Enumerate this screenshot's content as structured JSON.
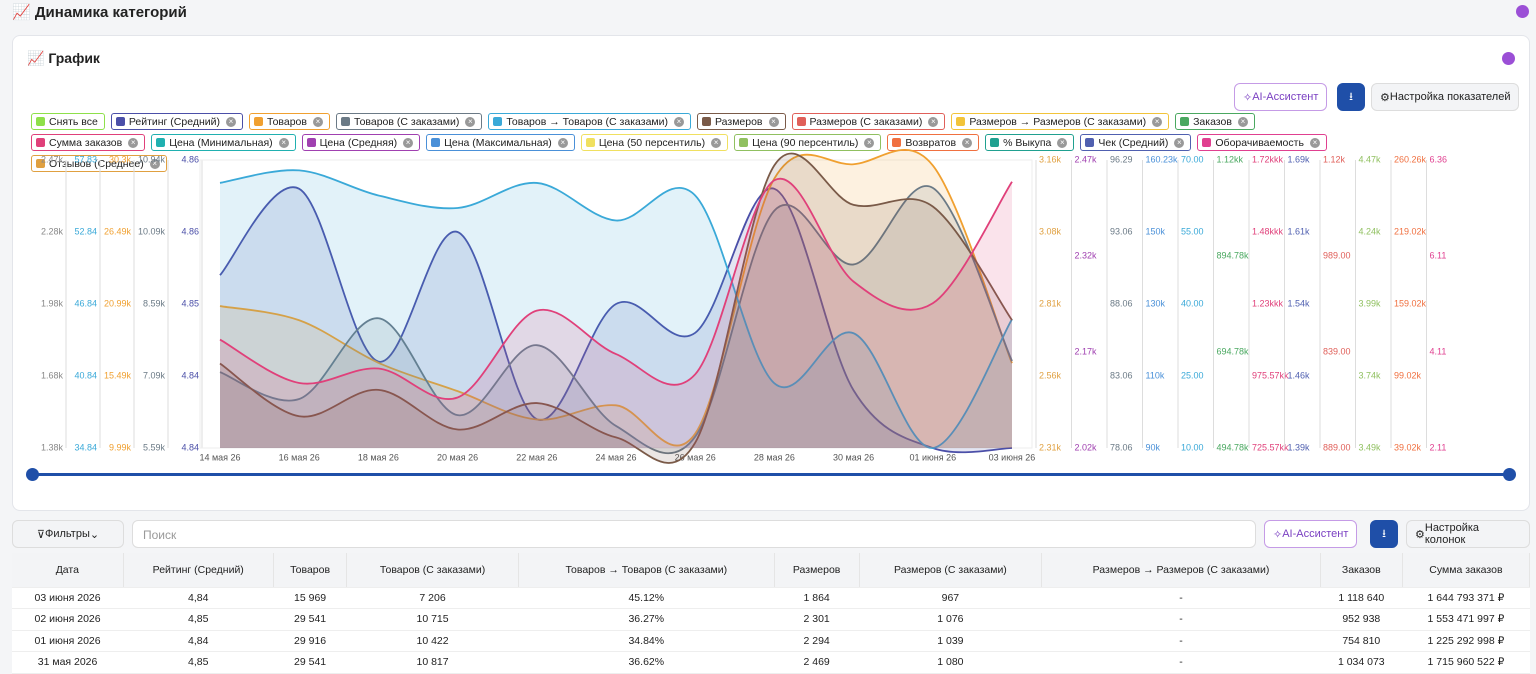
{
  "header": {
    "title": "Динамика категорий"
  },
  "card": {
    "title": "График",
    "buttons": [
      "AI-Ассистент",
      "Настройка показателей"
    ]
  },
  "legend": [
    {
      "label": "Снять все",
      "color": "#8ee04a"
    },
    {
      "label": "Рейтинг (Средний)",
      "color": "#4b4fa8"
    },
    {
      "label": "Товаров",
      "color": "#f0a030"
    },
    {
      "label": "Товаров (С заказами)",
      "color": "#6b7a86"
    },
    {
      "label": "Товаров → Товаров (С заказами)",
      "color": "#3aa9d8"
    },
    {
      "label": "Размеров",
      "color": "#7a5a48"
    },
    {
      "label": "Размеров (С заказами)",
      "color": "#e0605a"
    },
    {
      "label": "Размеров → Размеров (С заказами)",
      "color": "#f2c43a"
    },
    {
      "label": "Заказов",
      "color": "#4aa860"
    },
    {
      "label": "Сумма заказов",
      "color": "#e0407a"
    },
    {
      "label": "Цена (Минимальная)",
      "color": "#20b0b0"
    },
    {
      "label": "Цена (Средняя)",
      "color": "#a040b0"
    },
    {
      "label": "Цена (Максимальная)",
      "color": "#4a90d8"
    },
    {
      "label": "Цена (50 персентиль)",
      "color": "#f0e060"
    },
    {
      "label": "Цена (90 персентиль)",
      "color": "#90c060"
    },
    {
      "label": "Возвратов",
      "color": "#f07040"
    },
    {
      "label": "% Выкупа",
      "color": "#20a090"
    },
    {
      "label": "Чек (Средний)",
      "color": "#5060b0"
    },
    {
      "label": "Оборачиваемость",
      "color": "#e04090"
    },
    {
      "label": "Отзывов (Среднее)",
      "color": "#e0a040"
    }
  ],
  "axes_left": [
    {
      "color": "#888",
      "ticks": [
        "2.47k",
        "2.28k",
        "1.98k",
        "1.68k",
        "1.38k"
      ]
    },
    {
      "color": "#3aa9d8",
      "ticks": [
        "57.83",
        "52.84",
        "46.84",
        "40.84",
        "34.84"
      ]
    },
    {
      "color": "#f0a030",
      "ticks": [
        "30.3k",
        "26.49k",
        "20.99k",
        "15.49k",
        "9.99k"
      ]
    },
    {
      "color": "#6b7a86",
      "ticks": [
        "10.94k",
        "10.09k",
        "8.59k",
        "7.09k",
        "5.59k"
      ]
    },
    {
      "color": "#4b4fa8",
      "ticks": [
        "4.86",
        "4.86",
        "4.85",
        "4.84",
        "4.84"
      ]
    }
  ],
  "axes_right": [
    {
      "color": "#e0a040",
      "ticks": [
        "3.16k",
        "3.08k",
        "2.81k",
        "2.56k",
        "2.31k"
      ]
    },
    {
      "color": "#a040b0",
      "ticks": [
        "2.47k",
        "2.32k",
        "2.17k",
        "2.02k"
      ]
    },
    {
      "color": "#6b7a86",
      "ticks": [
        "96.29",
        "93.06",
        "88.06",
        "83.06",
        "78.06"
      ]
    },
    {
      "color": "#4a90d8",
      "ticks": [
        "160.23k",
        "150k",
        "130k",
        "110k",
        "90k"
      ]
    },
    {
      "color": "#3aa9d8",
      "ticks": [
        "70.00",
        "55.00",
        "40.00",
        "25.00",
        "10.00"
      ]
    },
    {
      "color": "#4aa860",
      "ticks": [
        "1.12kk",
        "894.78k",
        "694.78k",
        "494.78k"
      ]
    },
    {
      "color": "#e0407a",
      "ticks": [
        "1.72kkk",
        "1.48kkk",
        "1.23kkk",
        "975.57kk",
        "725.57kk"
      ]
    },
    {
      "color": "#5060b0",
      "ticks": [
        "1.69k",
        "1.61k",
        "1.54k",
        "1.46k",
        "1.39k"
      ]
    },
    {
      "color": "#e0605a",
      "ticks": [
        "1.12k",
        "989.00",
        "839.00",
        "889.00"
      ]
    },
    {
      "color": "#90c060",
      "ticks": [
        "4.47k",
        "4.24k",
        "3.99k",
        "3.74k",
        "3.49k"
      ]
    },
    {
      "color": "#f07040",
      "ticks": [
        "260.26k",
        "219.02k",
        "159.02k",
        "99.02k",
        "39.02k"
      ]
    },
    {
      "color": "#e04090",
      "ticks": [
        "6.36",
        "6.11",
        "4.11",
        "2.11"
      ]
    }
  ],
  "chart_data": {
    "type": "line",
    "categories": [
      "14 мая 26",
      "16 мая 26",
      "18 мая 26",
      "20 мая 26",
      "22 мая 26",
      "24 мая 26",
      "26 мая 26",
      "28 мая 26",
      "30 мая 26",
      "01 июня 26",
      "03 июня 26"
    ],
    "series": [
      {
        "name": "Рейтинг (Средний)",
        "color": "#4b4fa8",
        "ylim": [
          4.84,
          4.86
        ],
        "values": [
          4.852,
          4.858,
          4.846,
          4.855,
          4.842,
          4.85,
          4.848,
          4.858,
          4.844,
          4.84,
          4.84
        ]
      },
      {
        "name": "Товаров",
        "color": "#f0a030",
        "ylim": [
          9990,
          30300
        ],
        "values": [
          20000,
          19000,
          16000,
          14000,
          12000,
          13000,
          11000,
          29000,
          30000,
          29916,
          15969
        ]
      },
      {
        "name": "Товаров (С заказами)",
        "color": "#6b7a86",
        "ylim": [
          5590,
          10940
        ],
        "values": [
          7000,
          6500,
          8000,
          6200,
          7500,
          6000,
          5800,
          10000,
          9000,
          10422,
          7206
        ]
      },
      {
        "name": "Товаров → Товаров (С заказами)",
        "color": "#3aa9d8",
        "ylim": [
          34.84,
          57.83
        ],
        "values": [
          56,
          57,
          55,
          54,
          56,
          53,
          55,
          40,
          44,
          34.84,
          45.12
        ]
      },
      {
        "name": "Размеров",
        "color": "#7a5a48",
        "ylim": [
          1380,
          2470
        ],
        "values": [
          1700,
          1500,
          1600,
          1450,
          1550,
          1420,
          1400,
          2450,
          2300,
          2294,
          1864
        ]
      },
      {
        "name": "Сумма заказов",
        "color": "#e0407a",
        "ylim": [
          725570000,
          1720000000
        ],
        "values": [
          1100000000,
          950000000,
          1000000000,
          900000000,
          1200000000,
          1050000000,
          980000000,
          1650000000,
          1300000000,
          1225292998,
          1644793371
        ]
      }
    ]
  },
  "toolbar": {
    "filters": "Фильтры",
    "search": "Поиск",
    "ai": "AI-Ассистент",
    "columns": "Настройка колонок"
  },
  "table": {
    "header": [
      "Дата",
      "Рейтинг (Средний)",
      "Товаров",
      "Товаров (С заказами)",
      "Товаров → Товаров (С заказами)",
      "Размеров",
      "Размеров (С заказами)",
      "Размеров → Размеров (С заказами)",
      "Заказов",
      "Сумма заказов"
    ],
    "rows": [
      [
        "03 июня 2026",
        "4,84",
        "15 969",
        "7 206",
        "45.12%",
        "1 864",
        "967",
        "-",
        "1 118 640",
        "1 644 793 371 ₽"
      ],
      [
        "02 июня 2026",
        "4,85",
        "29 541",
        "10 715",
        "36.27%",
        "2 301",
        "1 076",
        "-",
        "952 938",
        "1 553 471 997 ₽"
      ],
      [
        "01 июня 2026",
        "4,84",
        "29 916",
        "10 422",
        "34.84%",
        "2 294",
        "1 039",
        "-",
        "754 810",
        "1 225 292 998 ₽"
      ],
      [
        "31 мая 2026",
        "4,85",
        "29 541",
        "10 817",
        "36.62%",
        "2 469",
        "1 080",
        "-",
        "1 034 073",
        "1 715 960 522 ₽"
      ]
    ]
  }
}
